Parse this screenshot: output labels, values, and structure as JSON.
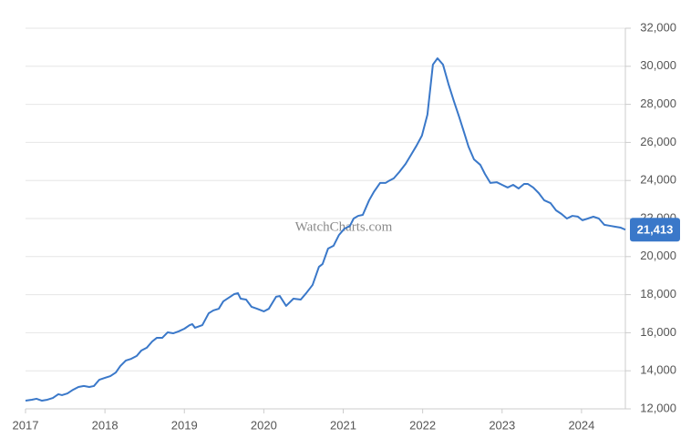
{
  "chart_data": {
    "type": "line",
    "watermark": "WatchCharts.com",
    "color": "#3a78c9",
    "x": [
      2017.0,
      2017.08,
      2017.138,
      2017.207,
      2017.275,
      2017.344,
      2017.413,
      2017.459,
      2017.528,
      2017.597,
      2017.666,
      2017.734,
      2017.803,
      2017.861,
      2017.929,
      2018.0,
      2018.068,
      2018.137,
      2018.194,
      2018.263,
      2018.331,
      2018.4,
      2018.457,
      2018.526,
      2018.595,
      2018.652,
      2018.721,
      2018.79,
      2018.859,
      2018.927,
      2019.0,
      2019.066,
      2019.1,
      2019.134,
      2019.226,
      2019.306,
      2019.364,
      2019.433,
      2019.49,
      2019.559,
      2019.628,
      2019.674,
      2019.708,
      2019.777,
      2019.846,
      2019.915,
      2020.0,
      2020.063,
      2020.155,
      2020.201,
      2020.281,
      2020.373,
      2020.465,
      2020.534,
      2020.614,
      2020.694,
      2020.74,
      2020.809,
      2020.878,
      2020.947,
      2021.016,
      2021.085,
      2021.131,
      2021.188,
      2021.246,
      2021.326,
      2021.384,
      2021.464,
      2021.532,
      2021.567,
      2021.636,
      2021.705,
      2021.785,
      2021.854,
      2021.923,
      2021.991,
      2022.06,
      2022.129,
      2022.187,
      2022.256,
      2022.324,
      2022.393,
      2022.462,
      2022.531,
      2022.577,
      2022.646,
      2022.726,
      2022.783,
      2022.852,
      2022.932,
      2023.0,
      2023.07,
      2023.139,
      2023.208,
      2023.277,
      2023.323,
      2023.392,
      2023.461,
      2023.53,
      2023.61,
      2023.679,
      2023.748,
      2023.816,
      2023.885,
      2023.954,
      2024.011,
      2024.08,
      2024.149,
      2024.218,
      2024.287,
      2024.356,
      2024.425,
      2024.494,
      2024.552
    ],
    "values": [
      12430,
      12480,
      12530,
      12430,
      12480,
      12570,
      12770,
      12720,
      12810,
      13000,
      13150,
      13200,
      13150,
      13200,
      13530,
      13630,
      13720,
      13910,
      14250,
      14540,
      14630,
      14780,
      15060,
      15210,
      15540,
      15730,
      15730,
      16020,
      15970,
      16070,
      16210,
      16400,
      16450,
      16260,
      16400,
      17020,
      17170,
      17260,
      17650,
      17840,
      18030,
      18080,
      17790,
      17740,
      17360,
      17260,
      17120,
      17260,
      17890,
      17930,
      17410,
      17790,
      17740,
      18080,
      18510,
      19460,
      19610,
      20420,
      20570,
      21140,
      21470,
      21620,
      22000,
      22140,
      22190,
      22960,
      23390,
      23870,
      23870,
      23960,
      24110,
      24440,
      24870,
      25350,
      25830,
      26360,
      27460,
      30090,
      30420,
      30090,
      29080,
      28170,
      27310,
      26400,
      25780,
      25110,
      24820,
      24350,
      23870,
      23910,
      23770,
      23630,
      23770,
      23580,
      23820,
      23820,
      23630,
      23340,
      22960,
      22810,
      22430,
      22240,
      22000,
      22140,
      22100,
      21910,
      22000,
      22100,
      22000,
      21670,
      21620,
      21570,
      21520,
      21413
    ],
    "last_label": {
      "value": 21413,
      "label": "21,413"
    },
    "xlim": [
      2017,
      2024.552
    ],
    "xticks": [
      2017,
      2018,
      2019,
      2020,
      2021,
      2022,
      2023,
      2024
    ],
    "ylim": [
      12000,
      32000
    ],
    "yticks": [
      {
        "value": 12000,
        "label": "12,000"
      },
      {
        "value": 14000,
        "label": "14,000"
      },
      {
        "value": 16000,
        "label": "16,000"
      },
      {
        "value": 18000,
        "label": "18,000"
      },
      {
        "value": 20000,
        "label": "20,000"
      },
      {
        "value": 22000,
        "label": "22,000"
      },
      {
        "value": 24000,
        "label": "24,000"
      },
      {
        "value": 26000,
        "label": "26,000"
      },
      {
        "value": 28000,
        "label": "28,000"
      },
      {
        "value": 30000,
        "label": "30,000"
      },
      {
        "value": 32000,
        "label": "32,000"
      }
    ],
    "grid": true
  }
}
